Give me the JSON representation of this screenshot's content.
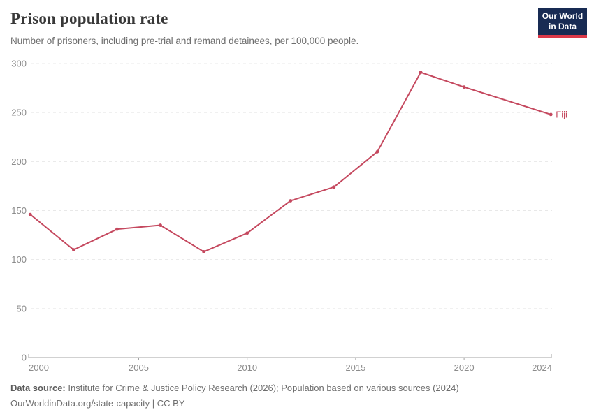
{
  "header": {
    "title": "Prison population rate",
    "subtitle": "Number of prisoners, including pre-trial and remand detainees, per 100,000 people.",
    "logo": {
      "line1": "Our World",
      "line2": "in Data"
    }
  },
  "chart_data": {
    "type": "line",
    "title": "Prison population rate",
    "subtitle": "Number of prisoners, including pre-trial and remand detainees, per 100,000 people.",
    "series": [
      {
        "name": "Fiji",
        "color": "#c5495f",
        "x": [
          2000,
          2002,
          2004,
          2006,
          2008,
          2010,
          2012,
          2014,
          2016,
          2018,
          2020,
          2024
        ],
        "values": [
          146,
          110,
          131,
          135,
          108,
          127,
          160,
          174,
          210,
          291,
          276,
          248
        ]
      }
    ],
    "xlabel": "",
    "ylabel": "",
    "xlim": [
      2000,
      2024
    ],
    "ylim": [
      0,
      300
    ],
    "x_ticks": [
      2000,
      2005,
      2010,
      2015,
      2020,
      2024
    ],
    "y_ticks": [
      0,
      50,
      100,
      150,
      200,
      250,
      300
    ],
    "grid": "horizontal dashed",
    "legend": "end-of-line label"
  },
  "footer": {
    "source_label": "Data source:",
    "source_text": "Institute for Crime & Justice Policy Research (2026); Population based on various sources (2024)",
    "license_line": "OurWorldinData.org/state-capacity | CC BY"
  },
  "colors": {
    "line": "#c5495f",
    "grid": "#e8e8e8",
    "axis": "#a3a3a3",
    "tick_label": "#8c8c8c",
    "logo_bg": "#182b53",
    "logo_red": "#dc3949"
  }
}
